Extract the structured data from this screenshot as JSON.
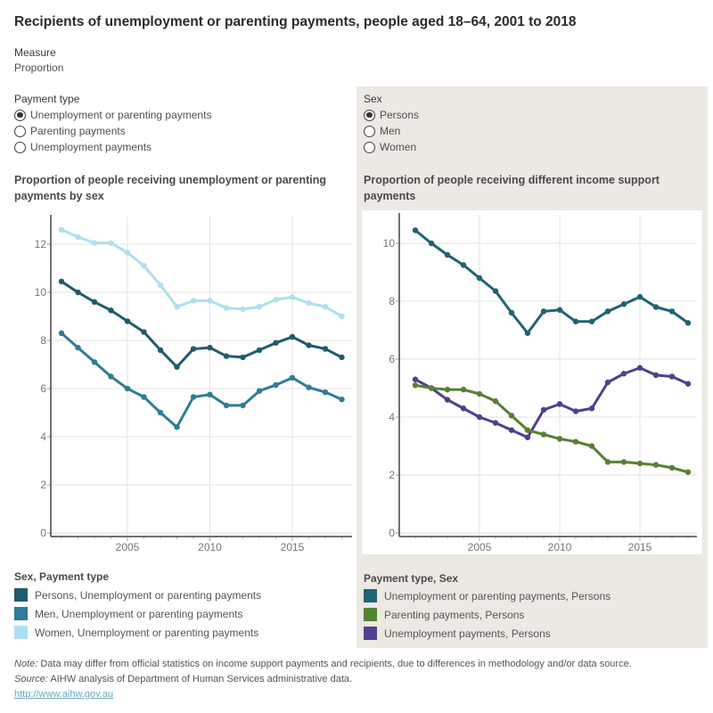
{
  "title": "Recipients of unemployment or parenting payments, people aged 18–64, 2001 to 2018",
  "measure": {
    "label": "Measure",
    "value": "Proportion"
  },
  "filters": {
    "payment_type": {
      "label": "Payment type",
      "options": [
        {
          "label": "Unemployment or parenting payments",
          "selected": true
        },
        {
          "label": "Parenting payments",
          "selected": false
        },
        {
          "label": "Unemployment payments",
          "selected": false
        }
      ]
    },
    "sex": {
      "label": "Sex",
      "options": [
        {
          "label": "Persons",
          "selected": true
        },
        {
          "label": "Men",
          "selected": false
        },
        {
          "label": "Women",
          "selected": false
        }
      ]
    }
  },
  "chart_data": [
    {
      "type": "line",
      "title": "Proportion of people receiving unemployment or parenting payments by sex",
      "x": [
        2001,
        2002,
        2003,
        2004,
        2005,
        2006,
        2007,
        2008,
        2009,
        2010,
        2011,
        2012,
        2013,
        2014,
        2015,
        2016,
        2017,
        2018
      ],
      "series": [
        {
          "name": "Persons, Unemployment or parenting payments",
          "color": "#1E5C6D",
          "values": [
            10.45,
            10.0,
            9.6,
            9.25,
            8.8,
            8.35,
            7.6,
            6.9,
            7.65,
            7.7,
            7.35,
            7.3,
            7.6,
            7.9,
            8.15,
            7.8,
            7.65,
            7.3
          ]
        },
        {
          "name": "Men, Unemployment or parenting payments",
          "color": "#2E7C98",
          "values": [
            8.3,
            7.7,
            7.1,
            6.5,
            6.0,
            5.65,
            5.0,
            4.4,
            5.65,
            5.75,
            5.3,
            5.3,
            5.9,
            6.15,
            6.45,
            6.05,
            5.85,
            5.55
          ]
        },
        {
          "name": "Women, Unemployment or parenting payments",
          "color": "#AEDFED",
          "values": [
            12.6,
            12.3,
            12.05,
            12.05,
            11.65,
            11.1,
            10.3,
            9.4,
            9.65,
            9.65,
            9.35,
            9.3,
            9.4,
            9.7,
            9.8,
            9.55,
            9.4,
            9.0
          ]
        }
      ],
      "ylim": [
        0,
        13.2
      ],
      "yticks": [
        0,
        2,
        4,
        6,
        8,
        10,
        12
      ],
      "xticks": [
        2005,
        2010,
        2015
      ],
      "grid": true,
      "legend": {
        "title": "Sex, Payment type",
        "position": "below"
      }
    },
    {
      "type": "line",
      "title": "Proportion of people receiving different income support payments",
      "x": [
        2001,
        2002,
        2003,
        2004,
        2005,
        2006,
        2007,
        2008,
        2009,
        2010,
        2011,
        2012,
        2013,
        2014,
        2015,
        2016,
        2017,
        2018
      ],
      "series": [
        {
          "name": "Unemployment or parenting payments, Persons",
          "color": "#1F6378",
          "values": [
            10.45,
            10.0,
            9.6,
            9.25,
            8.8,
            8.35,
            7.6,
            6.9,
            7.65,
            7.7,
            7.3,
            7.3,
            7.65,
            7.9,
            8.15,
            7.8,
            7.65,
            7.25
          ]
        },
        {
          "name": "Parenting payments, Persons",
          "color": "#568233",
          "values": [
            5.1,
            5.0,
            4.95,
            4.95,
            4.8,
            4.55,
            4.05,
            3.55,
            3.4,
            3.25,
            3.15,
            3.0,
            2.45,
            2.45,
            2.4,
            2.35,
            2.25,
            2.1
          ]
        },
        {
          "name": "Unemployment payments, Persons",
          "color": "#533E90",
          "values": [
            5.3,
            5.0,
            4.6,
            4.3,
            4.0,
            3.8,
            3.55,
            3.3,
            4.25,
            4.45,
            4.2,
            4.3,
            5.2,
            5.5,
            5.7,
            5.45,
            5.4,
            5.15
          ]
        }
      ],
      "ylim": [
        0,
        11.1
      ],
      "yticks": [
        0,
        2,
        4,
        6,
        8,
        10
      ],
      "xticks": [
        2005,
        2010,
        2015
      ],
      "grid": true,
      "legend": {
        "title": "Payment type, Sex",
        "position": "below"
      }
    }
  ],
  "footer": {
    "note_label": "Note:",
    "note_text": " Data may differ from official statistics on income support payments and recipients, due to differences in methodology and/or data source.",
    "source_label": "Source:",
    "source_text": " AIHW analysis of Department of Human Services administrative data.",
    "link": "http://www.aihw.gov.au"
  }
}
